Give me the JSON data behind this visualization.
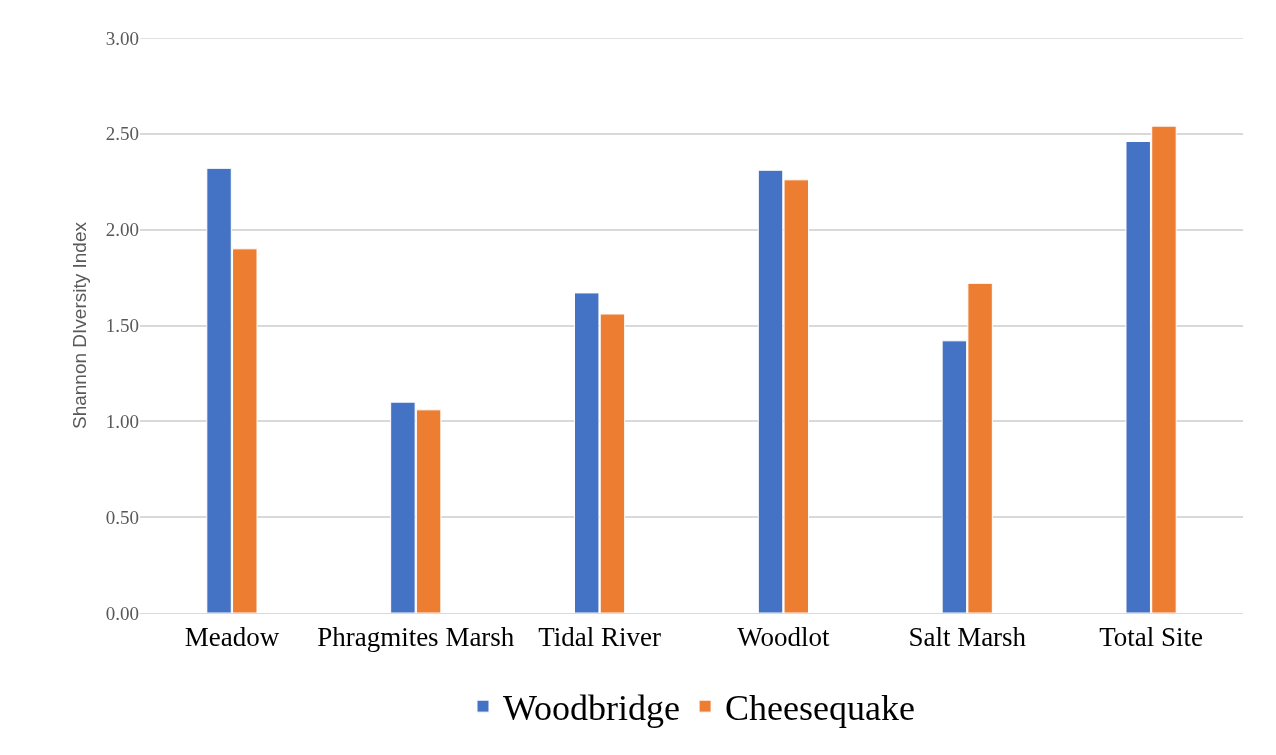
{
  "chart_data": {
    "type": "bar",
    "ylabel": "Shannon DIversity Index",
    "categories": [
      "Meadow",
      "Phragmites Marsh",
      "Tidal River",
      "Woodlot",
      "Salt Marsh",
      "Total Site"
    ],
    "series": [
      {
        "name": "Woodbridge",
        "color": "#4472c4",
        "values": [
          2.32,
          1.1,
          1.67,
          2.31,
          1.42,
          2.46
        ]
      },
      {
        "name": "Cheesequake",
        "color": "#ed7d31",
        "values": [
          1.9,
          1.06,
          1.56,
          2.26,
          1.72,
          2.54
        ]
      }
    ],
    "ylim": [
      0,
      3
    ],
    "yticks": [
      {
        "value": 0,
        "label": "0.00"
      },
      {
        "value": 0.5,
        "label": "0.50"
      },
      {
        "value": 1,
        "label": "1.00"
      },
      {
        "value": 1.5,
        "label": "1.50"
      },
      {
        "value": 2,
        "label": "2.00"
      },
      {
        "value": 2.5,
        "label": "2.50"
      },
      {
        "value": 3,
        "label": "3.00"
      }
    ],
    "grid": "y",
    "legend": "bottom"
  }
}
